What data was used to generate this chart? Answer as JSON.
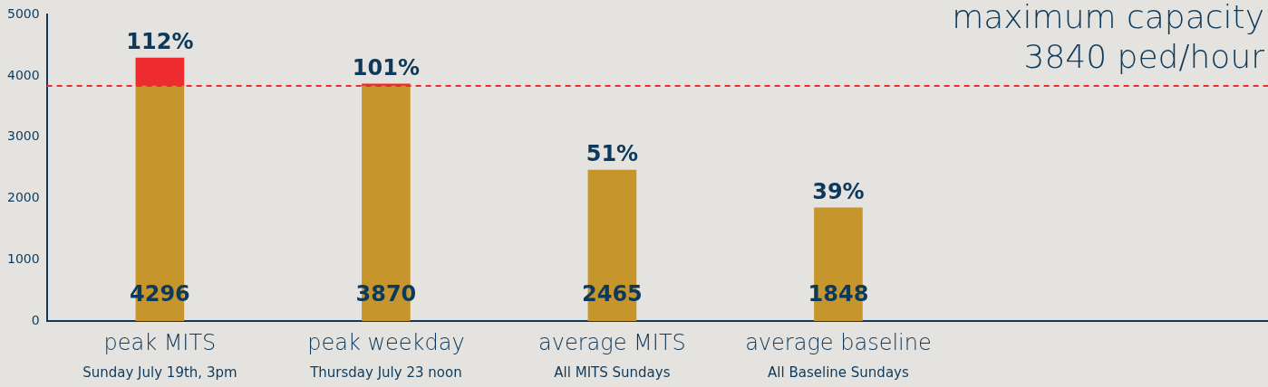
{
  "chart_data": {
    "type": "bar",
    "stacked": true,
    "categories": [
      "peak MITS\nSunday July 19th, 3pm",
      "peak weekday\nThursday July 23 noon",
      "average MITS\nAll MITS Sundays",
      "average baseline\nAll Baseline Sundays"
    ],
    "series": [
      {
        "color": "#c6962c",
        "values": [
          3840,
          3840,
          2465,
          1848
        ]
      },
      {
        "color": "#ee2b2f",
        "values": [
          456,
          30,
          null,
          null
        ]
      }
    ],
    "totals": [
      "4296",
      "3870",
      "2465",
      "1848"
    ],
    "annotations": [
      {
        "text": "112%",
        "x": "peak MITS\nSunday July 19th, 3pm",
        "y": 4296
      },
      {
        "text": "101%",
        "x": "peak weekday\nThursday July 23 noon",
        "y": 3870
      },
      {
        "text": "51%",
        "x": "average MITS\nAll MITS Sundays",
        "y": 2465
      },
      {
        "text": "39%",
        "x": "average baseline\nAll Baseline Sundays",
        "y": 1848
      }
    ],
    "ref_lines": [
      {
        "axis": "y",
        "value": 3840,
        "label": "maximum capacity\n3840 ped/hour",
        "color": "#ee2b2f",
        "line_style": "dashed"
      }
    ],
    "ylim": [
      0,
      5000
    ],
    "yticks": [
      0,
      1000,
      2000,
      3000,
      4000,
      5000
    ],
    "grid": false,
    "legend": false
  }
}
